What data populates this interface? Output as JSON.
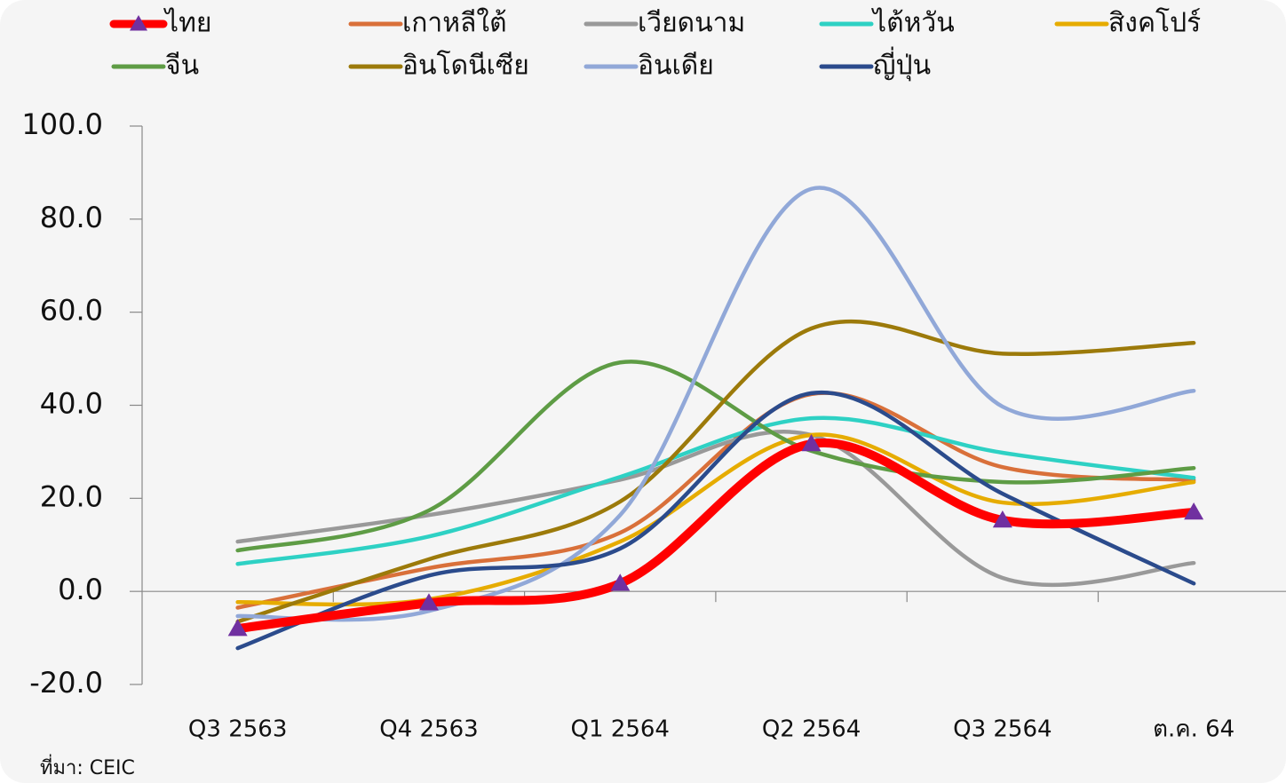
{
  "chart_data": {
    "type": "line",
    "categories": [
      "Q3 2563",
      "Q4 2563",
      "Q1 2564",
      "Q2 2564",
      "Q3 2564",
      "ต.ค. 64"
    ],
    "series": [
      {
        "name": "ไทย",
        "color": "#ff0000",
        "values": [
          -8.0,
          -2.5,
          1.7,
          31.7,
          15.3,
          17.0
        ]
      },
      {
        "name": "เกาหลีใต้",
        "color": "#d9703a",
        "values": [
          -3.5,
          5.0,
          12.6,
          42.4,
          26.7,
          23.9
        ]
      },
      {
        "name": "เวียดนาม",
        "color": "#999999",
        "values": [
          10.7,
          16.4,
          24.0,
          33.6,
          2.9,
          6.1
        ]
      },
      {
        "name": "ไต้หวัน",
        "color": "#2ed1c4",
        "values": [
          5.9,
          11.8,
          24.6,
          37.2,
          29.8,
          24.4
        ]
      },
      {
        "name": "สิงคโปร์",
        "color": "#e6ac00",
        "values": [
          -2.3,
          -1.7,
          10.7,
          33.6,
          19.1,
          23.5
        ]
      },
      {
        "name": "จีน",
        "color": "#5e9c45",
        "values": [
          8.8,
          17.4,
          49.2,
          30.2,
          23.5,
          26.5
        ]
      },
      {
        "name": "อินโดนีเซีย",
        "color": "#9c7a0a",
        "values": [
          -6.5,
          6.9,
          19.3,
          56.5,
          51.1,
          53.4
        ]
      },
      {
        "name": "อินเดีย",
        "color": "#91a8d8",
        "values": [
          -5.3,
          -4.2,
          16.4,
          86.5,
          39.7,
          43.1
        ]
      },
      {
        "name": "ญี่ปุ่น",
        "color": "#2b4b8c",
        "values": [
          -12.2,
          3.4,
          9.2,
          42.6,
          21.0,
          1.7
        ]
      }
    ],
    "ylim": [
      -20,
      100
    ],
    "yticks": [
      {
        "value": -20,
        "label": "-20.0"
      },
      {
        "value": 0,
        "label": "0.0"
      },
      {
        "value": 20,
        "label": "20.0"
      },
      {
        "value": 40,
        "label": "40.0"
      },
      {
        "value": 60,
        "label": "60.0"
      },
      {
        "value": 80,
        "label": "80.0"
      },
      {
        "value": 100,
        "label": "100.0"
      }
    ],
    "markers": {
      "ไทย": "triangle"
    },
    "source": "ที่มา: CEIC"
  }
}
